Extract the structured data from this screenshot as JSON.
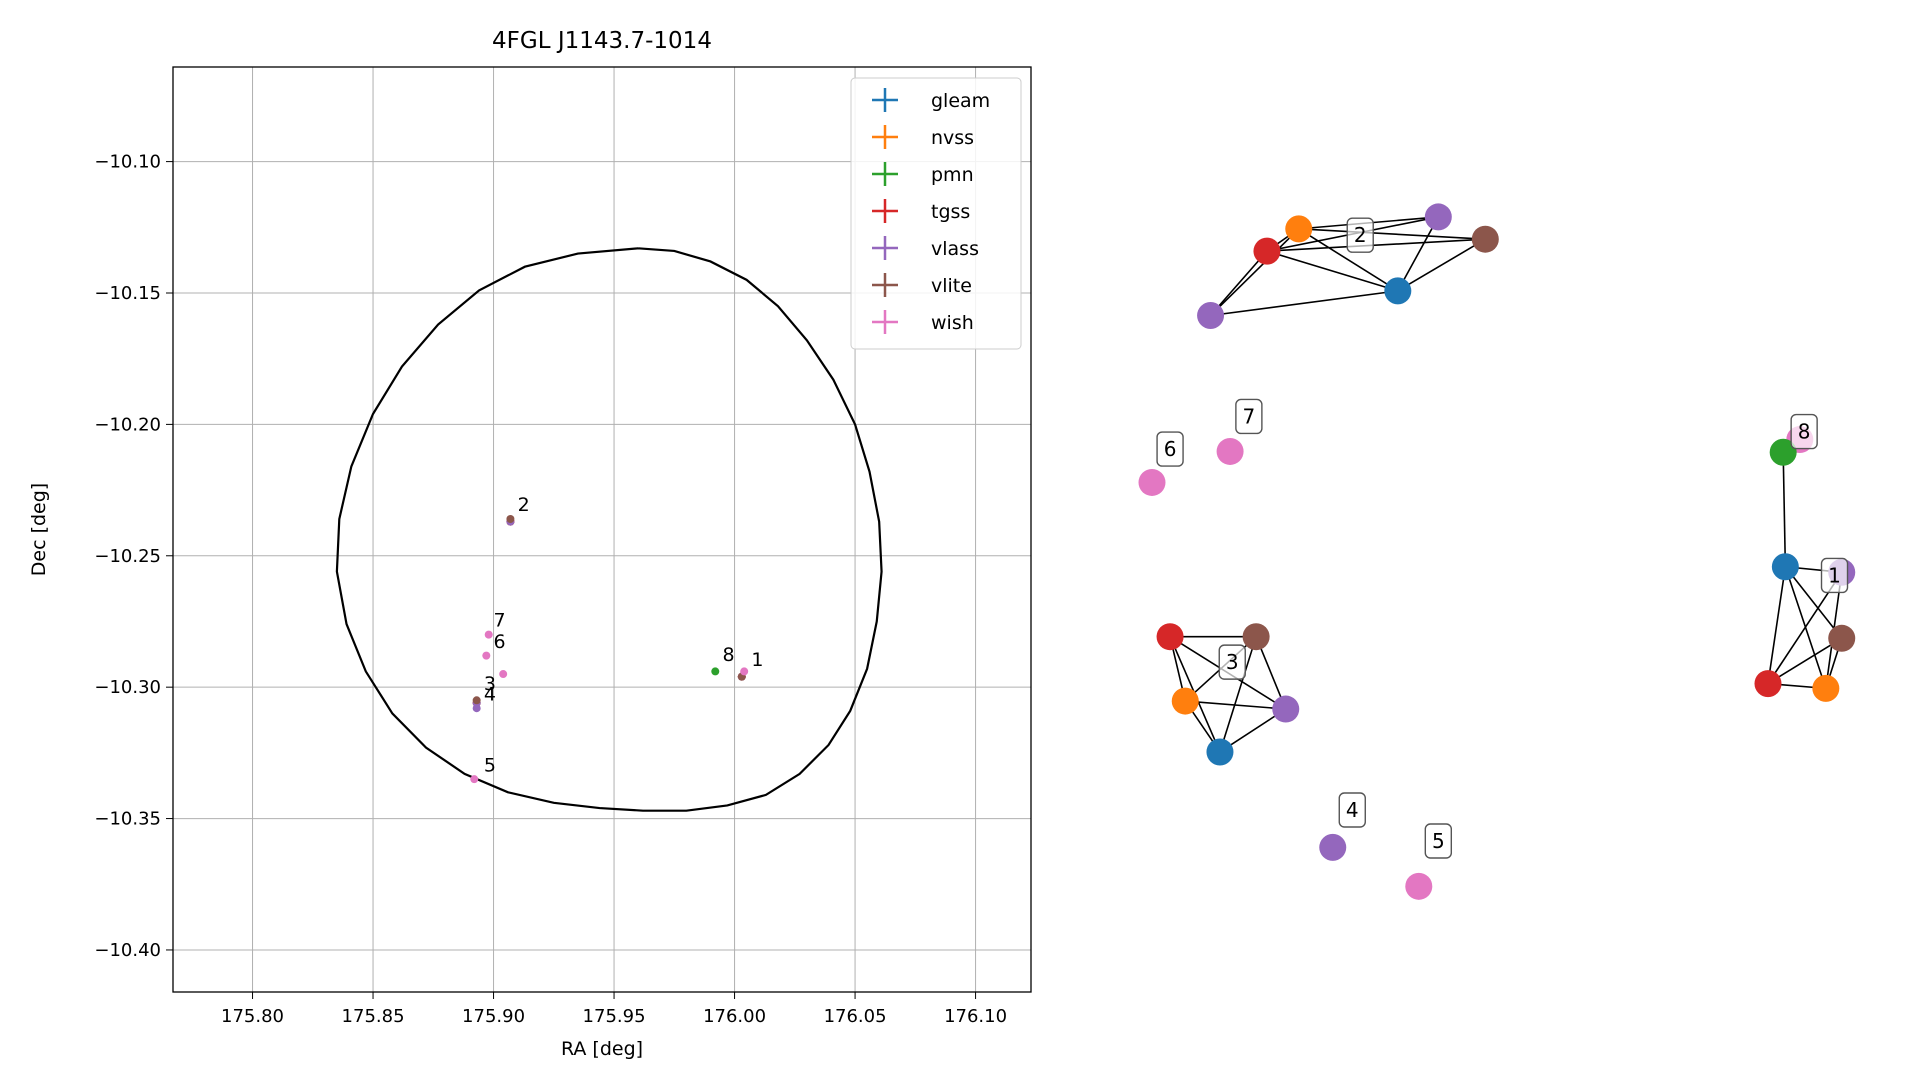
{
  "colors": {
    "gleam": "#1f77b4",
    "nvss": "#ff7f0e",
    "pmn": "#2ca02c",
    "tgss": "#d62728",
    "vlass": "#9467bd",
    "vlite": "#8c564b",
    "wish": "#e377c2"
  },
  "chart_data": [
    {
      "type": "scatter",
      "title": "4FGL J1143.7-1014",
      "xlabel": "RA [deg]",
      "ylabel": "Dec [deg]",
      "xlim": [
        175.767,
        176.123
      ],
      "ylim": [
        -10.416,
        -10.064
      ],
      "xticks": [
        175.8,
        175.85,
        175.9,
        175.95,
        176.0,
        176.05,
        176.1
      ],
      "xtick_labels": [
        "175.80",
        "175.85",
        "175.90",
        "175.95",
        "176.00",
        "176.05",
        "176.10"
      ],
      "yticks": [
        -10.1,
        -10.15,
        -10.2,
        -10.25,
        -10.3,
        -10.35,
        -10.4
      ],
      "ytick_labels": [
        "−10.10",
        "−10.15",
        "−10.20",
        "−10.25",
        "−10.30",
        "−10.35",
        "−10.40"
      ],
      "grid": true,
      "legend": "top-right",
      "ellipse": [
        [
          175.96,
          -10.133
        ],
        [
          175.975,
          -10.134
        ],
        [
          175.99,
          -10.138
        ],
        [
          176.005,
          -10.145
        ],
        [
          176.018,
          -10.155
        ],
        [
          176.03,
          -10.168
        ],
        [
          176.041,
          -10.183
        ],
        [
          176.05,
          -10.2
        ],
        [
          176.056,
          -10.218
        ],
        [
          176.06,
          -10.237
        ],
        [
          176.061,
          -10.256
        ],
        [
          176.059,
          -10.275
        ],
        [
          176.055,
          -10.293
        ],
        [
          176.048,
          -10.309
        ],
        [
          176.039,
          -10.322
        ],
        [
          176.027,
          -10.333
        ],
        [
          176.013,
          -10.341
        ],
        [
          175.997,
          -10.345
        ],
        [
          175.98,
          -10.347
        ],
        [
          175.962,
          -10.347
        ],
        [
          175.944,
          -10.346
        ],
        [
          175.925,
          -10.344
        ],
        [
          175.906,
          -10.34
        ],
        [
          175.888,
          -10.333
        ],
        [
          175.872,
          -10.323
        ],
        [
          175.858,
          -10.31
        ],
        [
          175.847,
          -10.294
        ],
        [
          175.839,
          -10.276
        ],
        [
          175.835,
          -10.256
        ],
        [
          175.836,
          -10.236
        ],
        [
          175.841,
          -10.216
        ],
        [
          175.85,
          -10.196
        ],
        [
          175.862,
          -10.178
        ],
        [
          175.877,
          -10.162
        ],
        [
          175.894,
          -10.149
        ],
        [
          175.913,
          -10.14
        ],
        [
          175.935,
          -10.135
        ],
        [
          175.96,
          -10.133
        ]
      ],
      "series": [
        {
          "name": "gleam",
          "points": [
            [
              175.907,
              -10.237
            ],
            [
              176.003,
              -10.296
            ],
            [
              175.893,
              -10.306
            ]
          ]
        },
        {
          "name": "nvss",
          "points": [
            [
              175.907,
              -10.237
            ],
            [
              176.003,
              -10.296
            ],
            [
              175.893,
              -10.306
            ]
          ]
        },
        {
          "name": "pmn",
          "points": [
            [
              175.992,
              -10.294
            ]
          ]
        },
        {
          "name": "tgss",
          "points": [
            [
              175.907,
              -10.237
            ],
            [
              176.003,
              -10.296
            ],
            [
              175.893,
              -10.306
            ]
          ]
        },
        {
          "name": "vlass",
          "points": [
            [
              175.907,
              -10.237
            ],
            [
              176.003,
              -10.296
            ],
            [
              175.893,
              -10.306
            ],
            [
              175.893,
              -10.308
            ]
          ]
        },
        {
          "name": "vlite",
          "points": [
            [
              175.907,
              -10.236
            ],
            [
              176.003,
              -10.296
            ],
            [
              175.893,
              -10.305
            ]
          ]
        },
        {
          "name": "wish",
          "points": [
            [
              175.904,
              -10.295
            ],
            [
              175.898,
              -10.28
            ],
            [
              175.897,
              -10.288
            ],
            [
              175.892,
              -10.335
            ],
            [
              176.004,
              -10.294
            ]
          ]
        }
      ],
      "annotations": [
        {
          "text": "2",
          "x": 175.91,
          "y": -10.233
        },
        {
          "text": "7",
          "x": 175.9,
          "y": -10.277
        },
        {
          "text": "6",
          "x": 175.9,
          "y": -10.285
        },
        {
          "text": "8",
          "x": 175.995,
          "y": -10.29
        },
        {
          "text": "1",
          "x": 176.007,
          "y": -10.292
        },
        {
          "text": "3",
          "x": 175.896,
          "y": -10.301
        },
        {
          "text": "4",
          "x": 175.896,
          "y": -10.305
        },
        {
          "text": "5",
          "x": 175.896,
          "y": -10.332
        }
      ]
    },
    {
      "type": "network",
      "nodes": [
        {
          "id": "c2_tgss",
          "cat": "tgss",
          "pos": [
            0.159,
            0.864
          ]
        },
        {
          "id": "c2_nvss",
          "cat": "nvss",
          "pos": [
            0.203,
            0.892
          ]
        },
        {
          "id": "c2_vlass",
          "cat": "vlass",
          "pos": [
            0.396,
            0.907
          ]
        },
        {
          "id": "c2_vlite",
          "cat": "vlite",
          "pos": [
            0.461,
            0.879
          ]
        },
        {
          "id": "c2_gleam",
          "cat": "gleam",
          "pos": [
            0.34,
            0.814
          ]
        },
        {
          "id": "c2_vlass_b",
          "cat": "vlass",
          "pos": [
            0.081,
            0.783
          ]
        },
        {
          "id": "n7",
          "cat": "wish",
          "pos": [
            0.108,
            0.612
          ]
        },
        {
          "id": "n6",
          "cat": "wish",
          "pos": [
            0.0,
            0.573
          ]
        },
        {
          "id": "c1_wish",
          "cat": "wish",
          "pos": [
            0.896,
            0.627
          ]
        },
        {
          "id": "n8",
          "cat": "pmn",
          "pos": [
            0.873,
            0.611
          ]
        },
        {
          "id": "c1_gleam",
          "cat": "gleam",
          "pos": [
            0.876,
            0.467
          ]
        },
        {
          "id": "c1_vlass",
          "cat": "vlass",
          "pos": [
            0.954,
            0.46
          ]
        },
        {
          "id": "c1_vlite",
          "cat": "vlite",
          "pos": [
            0.954,
            0.377
          ]
        },
        {
          "id": "c1_tgss",
          "cat": "tgss",
          "pos": [
            0.852,
            0.32
          ]
        },
        {
          "id": "c1_nvss",
          "cat": "nvss",
          "pos": [
            0.932,
            0.314
          ]
        },
        {
          "id": "c3_tgss",
          "cat": "tgss",
          "pos": [
            0.025,
            0.379
          ]
        },
        {
          "id": "c3_vlite",
          "cat": "vlite",
          "pos": [
            0.144,
            0.379
          ]
        },
        {
          "id": "c3_nvss",
          "cat": "nvss",
          "pos": [
            0.046,
            0.298
          ]
        },
        {
          "id": "c3_vlass",
          "cat": "vlass",
          "pos": [
            0.185,
            0.288
          ]
        },
        {
          "id": "c3_gleam",
          "cat": "gleam",
          "pos": [
            0.094,
            0.234
          ]
        },
        {
          "id": "n4",
          "cat": "vlass",
          "pos": [
            0.25,
            0.114
          ]
        },
        {
          "id": "n5",
          "cat": "wish",
          "pos": [
            0.369,
            0.065
          ]
        }
      ],
      "edges": [
        [
          "c2_tgss",
          "c2_nvss"
        ],
        [
          "c2_tgss",
          "c2_vlass"
        ],
        [
          "c2_tgss",
          "c2_vlite"
        ],
        [
          "c2_tgss",
          "c2_gleam"
        ],
        [
          "c2_tgss",
          "c2_vlass_b"
        ],
        [
          "c2_nvss",
          "c2_vlass"
        ],
        [
          "c2_nvss",
          "c2_vlite"
        ],
        [
          "c2_nvss",
          "c2_gleam"
        ],
        [
          "c2_nvss",
          "c2_vlass_b"
        ],
        [
          "c2_vlass",
          "c2_gleam"
        ],
        [
          "c2_vlite",
          "c2_gleam"
        ],
        [
          "c2_gleam",
          "c2_vlass_b"
        ],
        [
          "n8",
          "c1_gleam"
        ],
        [
          "c1_gleam",
          "c1_vlass"
        ],
        [
          "c1_gleam",
          "c1_vlite"
        ],
        [
          "c1_gleam",
          "c1_tgss"
        ],
        [
          "c1_gleam",
          "c1_nvss"
        ],
        [
          "c1_vlass",
          "c1_tgss"
        ],
        [
          "c1_vlass",
          "c1_nvss"
        ],
        [
          "c1_vlite",
          "c1_tgss"
        ],
        [
          "c1_vlite",
          "c1_nvss"
        ],
        [
          "c1_tgss",
          "c1_nvss"
        ],
        [
          "c3_tgss",
          "c3_vlite"
        ],
        [
          "c3_tgss",
          "c3_nvss"
        ],
        [
          "c3_tgss",
          "c3_vlass"
        ],
        [
          "c3_tgss",
          "c3_gleam"
        ],
        [
          "c3_vlite",
          "c3_nvss"
        ],
        [
          "c3_vlite",
          "c3_vlass"
        ],
        [
          "c3_vlite",
          "c3_gleam"
        ],
        [
          "c3_nvss",
          "c3_vlass"
        ],
        [
          "c3_nvss",
          "c3_gleam"
        ],
        [
          "c3_vlass",
          "c3_gleam"
        ]
      ],
      "labels": [
        {
          "text": "2",
          "pos": [
            0.288,
            0.884
          ]
        },
        {
          "text": "7",
          "pos": [
            0.134,
            0.656
          ]
        },
        {
          "text": "6",
          "pos": [
            0.025,
            0.615
          ]
        },
        {
          "text": "8",
          "pos": [
            0.902,
            0.637
          ]
        },
        {
          "text": "1",
          "pos": [
            0.944,
            0.456
          ]
        },
        {
          "text": "3",
          "pos": [
            0.111,
            0.347
          ]
        },
        {
          "text": "4",
          "pos": [
            0.277,
            0.161
          ]
        },
        {
          "text": "5",
          "pos": [
            0.396,
            0.122
          ]
        }
      ]
    }
  ]
}
